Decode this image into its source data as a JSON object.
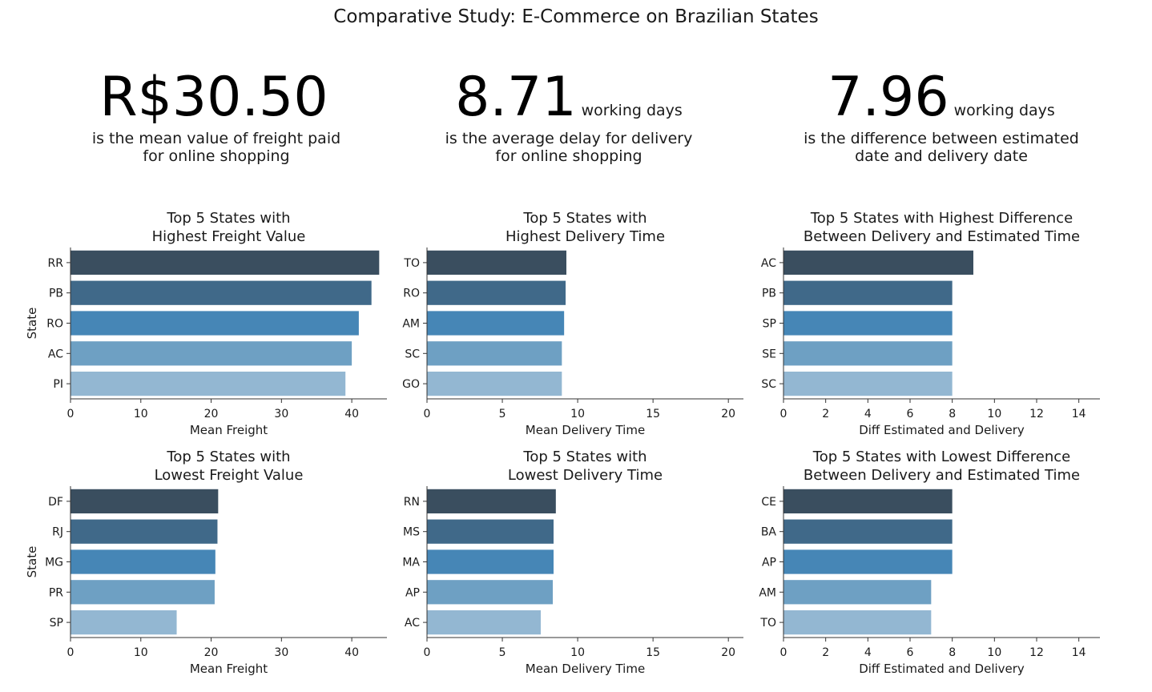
{
  "figure_title": "Comparative Study: E-Commerce on Brazilian States",
  "kpis": [
    {
      "value": "R$30.50",
      "unit": "",
      "description": "is the mean value of freight paid\nfor online shopping"
    },
    {
      "value": "8.71",
      "unit": "working days",
      "description": "is the average delay for delivery\nfor online shopping"
    },
    {
      "value": "7.96",
      "unit": "working days",
      "description": "is the difference between estimated\ndate and delivery date"
    }
  ],
  "colors": [
    "#3a4e5f",
    "#406989",
    "#4686b6",
    "#6ea0c3",
    "#93b7d2"
  ],
  "chart_data": [
    {
      "type": "bar",
      "orientation": "horizontal",
      "title": "Top 5 States with\nHighest Freight Value",
      "categories": [
        "RR",
        "PB",
        "RO",
        "AC",
        "PI"
      ],
      "values": [
        43.9,
        42.8,
        41.0,
        40.0,
        39.1
      ],
      "xlabel": "Mean Freight",
      "ylabel": "State",
      "xlim": [
        0,
        45
      ],
      "xticks": [
        0,
        10,
        20,
        30,
        40
      ]
    },
    {
      "type": "bar",
      "orientation": "horizontal",
      "title": "Top 5 States with\nHighest Delivery Time",
      "categories": [
        "TO",
        "RO",
        "AM",
        "SC",
        "GO"
      ],
      "values": [
        9.25,
        9.2,
        9.1,
        8.95,
        8.95
      ],
      "xlabel": "Mean Delivery Time",
      "ylabel": "",
      "xlim": [
        0,
        21
      ],
      "xticks": [
        0,
        5,
        10,
        15,
        20
      ]
    },
    {
      "type": "bar",
      "orientation": "horizontal",
      "title": "Top 5 States with Highest Difference\nBetween Delivery and Estimated Time",
      "categories": [
        "AC",
        "PB",
        "SP",
        "SE",
        "SC"
      ],
      "values": [
        9,
        8,
        8,
        8,
        8
      ],
      "xlabel": "Diff Estimated and Delivery",
      "ylabel": "",
      "xlim": [
        0,
        15
      ],
      "xticks": [
        0,
        2,
        4,
        6,
        8,
        10,
        12,
        14
      ]
    },
    {
      "type": "bar",
      "orientation": "horizontal",
      "title": "Top 5 States with\nLowest Freight Value",
      "categories": [
        "DF",
        "RJ",
        "MG",
        "PR",
        "SP"
      ],
      "values": [
        21.0,
        20.9,
        20.6,
        20.5,
        15.1
      ],
      "xlabel": "Mean Freight",
      "ylabel": "State",
      "xlim": [
        0,
        45
      ],
      "xticks": [
        0,
        10,
        20,
        30,
        40
      ]
    },
    {
      "type": "bar",
      "orientation": "horizontal",
      "title": "Top 5 States with\nLowest Delivery Time",
      "categories": [
        "RN",
        "MS",
        "MA",
        "AP",
        "AC"
      ],
      "values": [
        8.55,
        8.4,
        8.4,
        8.35,
        7.55
      ],
      "xlabel": "Mean Delivery Time",
      "ylabel": "",
      "xlim": [
        0,
        21
      ],
      "xticks": [
        0,
        5,
        10,
        15,
        20
      ]
    },
    {
      "type": "bar",
      "orientation": "horizontal",
      "title": "Top 5 States with Lowest Difference\nBetween Delivery and Estimated Time",
      "categories": [
        "CE",
        "BA",
        "AP",
        "AM",
        "TO"
      ],
      "values": [
        8,
        8,
        8,
        7,
        7
      ],
      "xlabel": "Diff Estimated and Delivery",
      "ylabel": "",
      "xlim": [
        0,
        15
      ],
      "xticks": [
        0,
        2,
        4,
        6,
        8,
        10,
        12,
        14
      ]
    }
  ]
}
